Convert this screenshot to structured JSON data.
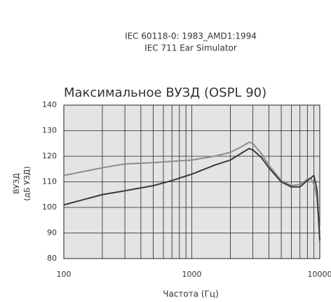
{
  "chart_data": {
    "type": "line",
    "header": [
      "IEC 60118-0: 1983_AMD1:1994",
      "IEC 711 Ear Simulator"
    ],
    "title": "Максимальное ВУЗД (OSPL 90)",
    "ylabel": [
      "ВУЗД",
      "(дБ УЗД)"
    ],
    "xlabel": "Частота (Гц)",
    "log_x": true,
    "grid": true,
    "minor_grid": true,
    "xlim": [
      100,
      10000
    ],
    "xticks": [
      100,
      1000,
      10000
    ],
    "ylim": [
      80,
      140
    ],
    "yticks": [
      80,
      90,
      100,
      110,
      120,
      130,
      140
    ],
    "x": [
      100,
      200,
      300,
      500,
      700,
      1000,
      1500,
      2000,
      2500,
      2800,
      3000,
      3500,
      4000,
      5000,
      6000,
      7000,
      8000,
      8500,
      9000,
      9500,
      10000
    ],
    "series": [
      {
        "color": "#8c8c8c",
        "values": [
          112.5,
          115.5,
          117,
          117.5,
          118,
          118.5,
          120,
          121.5,
          124,
          125.5,
          125,
          121,
          116.5,
          110.5,
          108.5,
          109,
          111,
          111.5,
          109,
          104,
          90
        ]
      },
      {
        "color": "#3a3a3a",
        "values": [
          101,
          105,
          106.5,
          108.5,
          110.5,
          113,
          116.5,
          118.5,
          121.5,
          123,
          122.5,
          119.5,
          115.5,
          110,
          108,
          108,
          110.5,
          111.5,
          112.5,
          107,
          87
        ]
      }
    ]
  }
}
